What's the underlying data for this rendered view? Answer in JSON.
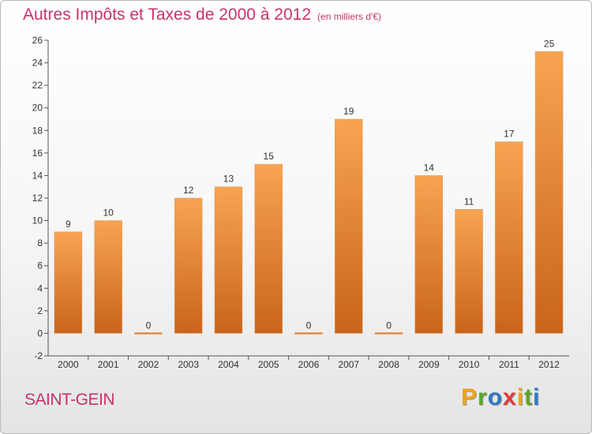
{
  "header": {
    "title": "Autres Impôts et Taxes de 2000 à 2012",
    "subtitle": "(en milliers d'€)"
  },
  "commune": "SAINT-GEIN",
  "logo": {
    "letters": [
      "P",
      "r",
      "o",
      "x",
      "i",
      "t",
      "i"
    ],
    "colors": [
      "#f2a21d",
      "#5aa62b",
      "#2f76c8",
      "#e23a3a",
      "#f2a21d",
      "#5aa62b",
      "#2f76c8"
    ]
  },
  "colors": {
    "bar_top": "#f7a452",
    "bar_bottom": "#c9641c",
    "title": "#c8326e"
  },
  "chart_data": {
    "type": "bar",
    "title": "Autres Impôts et Taxes de 2000 à 2012",
    "subtitle": "(en milliers d'€)",
    "categories": [
      "2000",
      "2001",
      "2002",
      "2003",
      "2004",
      "2005",
      "2006",
      "2007",
      "2008",
      "2009",
      "2010",
      "2011",
      "2012"
    ],
    "values": [
      9,
      10,
      0,
      12,
      13,
      15,
      0,
      19,
      0,
      14,
      11,
      17,
      25
    ],
    "value_labels": [
      "9",
      "10",
      "0",
      "12",
      "13",
      "15",
      "0",
      "19",
      "0",
      "14",
      "11",
      "17",
      "25"
    ],
    "ylim": [
      -2,
      26
    ],
    "yticks": [
      "-2",
      "0",
      "2",
      "4",
      "6",
      "8",
      "10",
      "12",
      "14",
      "16",
      "18",
      "20",
      "22",
      "24",
      "26"
    ],
    "grid": false,
    "legend": "none"
  }
}
